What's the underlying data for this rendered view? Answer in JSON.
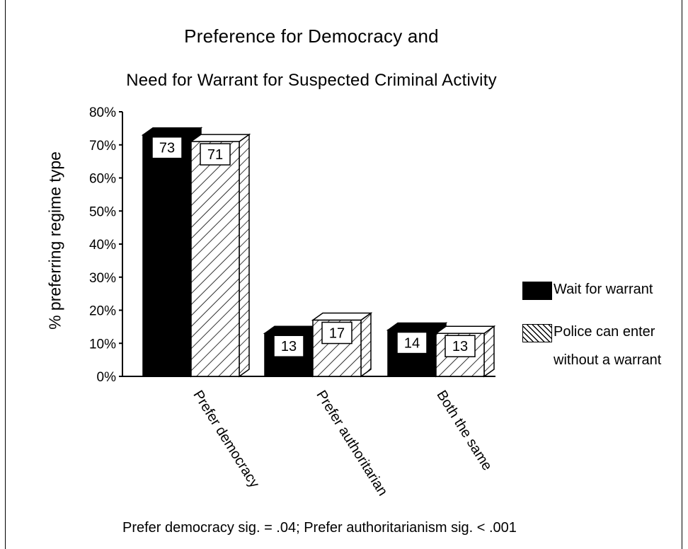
{
  "chart_data": {
    "type": "bar",
    "title": "Preference for Democracy and",
    "subtitle": "Need for Warrant for Suspected Criminal Activity",
    "ylabel": "% preferring regime type",
    "xlabel": "",
    "categories": [
      "Prefer democracy",
      "Prefer authoritarian",
      "Both the same"
    ],
    "series": [
      {
        "name": "Wait for warrant",
        "values": [
          73,
          13,
          14
        ],
        "style": "solid",
        "color": "#000000"
      },
      {
        "name": "Police can enter without a warrant",
        "values": [
          71,
          17,
          13
        ],
        "style": "hatched",
        "color": "#000000"
      }
    ],
    "data_labels": [
      [
        "73",
        "13",
        "14"
      ],
      [
        "71",
        "17",
        "13"
      ]
    ],
    "yticks": [
      "0%",
      "10%",
      "20%",
      "30%",
      "40%",
      "50%",
      "60%",
      "70%",
      "80%"
    ],
    "ylim": [
      0,
      80
    ],
    "grid": false,
    "legend_position": "right",
    "three_d": true,
    "note": "Prefer democracy sig. = .04; Prefer authoritarianism sig. < .001"
  },
  "legend": {
    "item1": "Wait for warrant",
    "item2_line1": "Police can enter",
    "item2_line2": "without a warrant"
  }
}
